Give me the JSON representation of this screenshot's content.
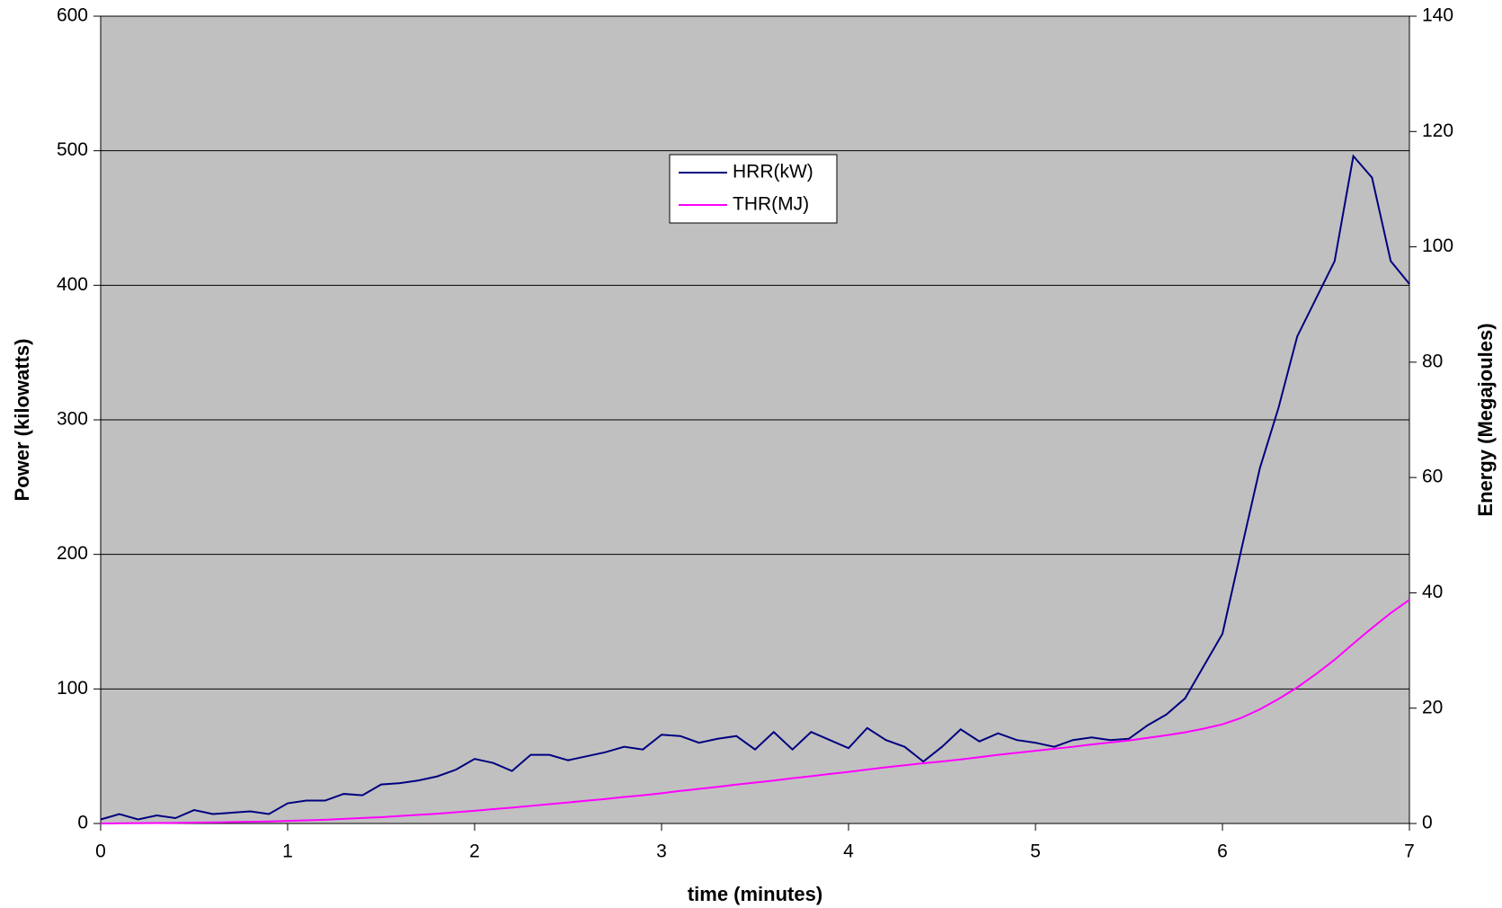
{
  "chart_data": {
    "type": "line",
    "x_label": "time (minutes)",
    "y_label": "Power (kilowatts)",
    "y2_label": "Energy (Megajoules)",
    "x": [
      0,
      0.1,
      0.2,
      0.3,
      0.4,
      0.5,
      0.6,
      0.7,
      0.8,
      0.9,
      1,
      1.1,
      1.2,
      1.3,
      1.4,
      1.5,
      1.6,
      1.7,
      1.8,
      1.9,
      2,
      2.1,
      2.2,
      2.3,
      2.4,
      2.5,
      2.6,
      2.7,
      2.8,
      2.9,
      3,
      3.1,
      3.2,
      3.3,
      3.4,
      3.5,
      3.6,
      3.7,
      3.8,
      3.9,
      4,
      4.1,
      4.2,
      4.3,
      4.4,
      4.5,
      4.6,
      4.7,
      4.8,
      4.9,
      5,
      5.1,
      5.2,
      5.3,
      5.4,
      5.5,
      5.6,
      5.7,
      5.8,
      5.9,
      6,
      6.1,
      6.2,
      6.3,
      6.4,
      6.5,
      6.6,
      6.7,
      6.8,
      6.9,
      7
    ],
    "series": [
      {
        "name": "HRR(kW)",
        "color": "#000080",
        "values": [
          3,
          7,
          3,
          6,
          4,
          10,
          7,
          8,
          9,
          7,
          15,
          17,
          17,
          22,
          21,
          29,
          30,
          32,
          35,
          40,
          48,
          45,
          39,
          51,
          51,
          47,
          50,
          53,
          57,
          55,
          66,
          65,
          60,
          63,
          65,
          55,
          68,
          55,
          68,
          62,
          56,
          71,
          62,
          57,
          46,
          57,
          70,
          61,
          67,
          62,
          60,
          57,
          62,
          64,
          62,
          63,
          73,
          81,
          93,
          117,
          141,
          203,
          264,
          309,
          362,
          390,
          418,
          496,
          480,
          418,
          401
        ]
      },
      {
        "name": "THR(MJ)",
        "color": "#ff00ff",
        "axis": "y2",
        "values": [
          0,
          0.03,
          0.05,
          0.08,
          0.1,
          0.15,
          0.2,
          0.25,
          0.3,
          0.35,
          0.45,
          0.55,
          0.65,
          0.8,
          0.95,
          1.1,
          1.3,
          1.5,
          1.7,
          1.95,
          2.2,
          2.5,
          2.75,
          3.05,
          3.35,
          3.65,
          3.95,
          4.25,
          4.6,
          4.9,
          5.25,
          5.65,
          6,
          6.35,
          6.75,
          7.1,
          7.45,
          7.85,
          8.2,
          8.6,
          8.95,
          9.35,
          9.75,
          10.1,
          10.45,
          10.75,
          11.1,
          11.5,
          11.9,
          12.25,
          12.6,
          12.95,
          13.3,
          13.7,
          14.05,
          14.4,
          14.85,
          15.3,
          15.8,
          16.45,
          17.2,
          18.3,
          19.8,
          21.6,
          23.6,
          25.9,
          28.4,
          31.2,
          33.9,
          36.5,
          38.8
        ]
      }
    ],
    "xlim": [
      0,
      7
    ],
    "xticks": [
      0,
      1,
      2,
      3,
      4,
      5,
      6,
      7
    ],
    "ylim": [
      0,
      600
    ],
    "yticks": [
      0,
      100,
      200,
      300,
      400,
      500,
      600
    ],
    "y2lim": [
      0,
      140
    ],
    "y2ticks": [
      0,
      20,
      40,
      60,
      80,
      100,
      120,
      140
    ],
    "grid": true,
    "plot_background": "#c0c0c0",
    "legend": "top"
  }
}
